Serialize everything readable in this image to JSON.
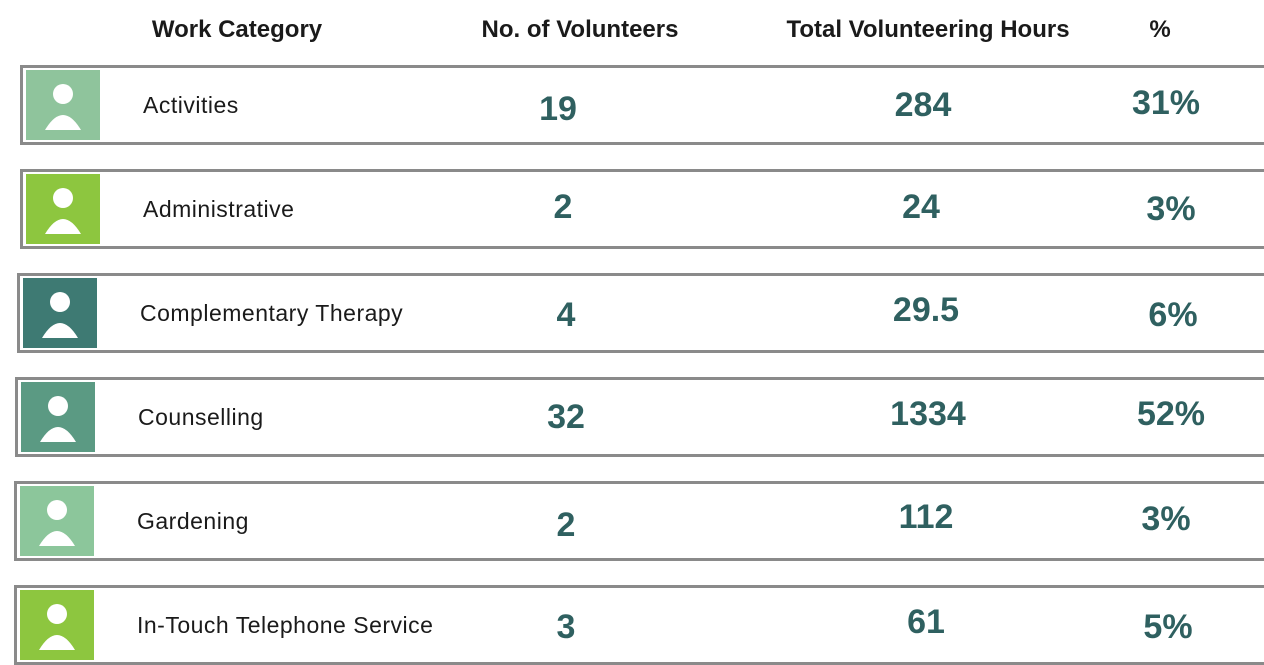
{
  "header": {
    "columns": [
      "Work Category",
      "No. of Volunteers",
      "Total Volunteering Hours",
      "%"
    ]
  },
  "table": {
    "rows": [
      [
        "Activities",
        "19",
        "284",
        "31%"
      ],
      [
        "Administrative",
        "2",
        "24",
        "3%"
      ],
      [
        "Complementary Therapy",
        "4",
        "29.5",
        "6%"
      ],
      [
        "Counselling",
        "32",
        "1334",
        "52%"
      ],
      [
        "Gardening",
        "2",
        "112",
        "3%"
      ],
      [
        "In-Touch Telephone Service",
        "3",
        "61",
        "5%"
      ]
    ]
  }
}
